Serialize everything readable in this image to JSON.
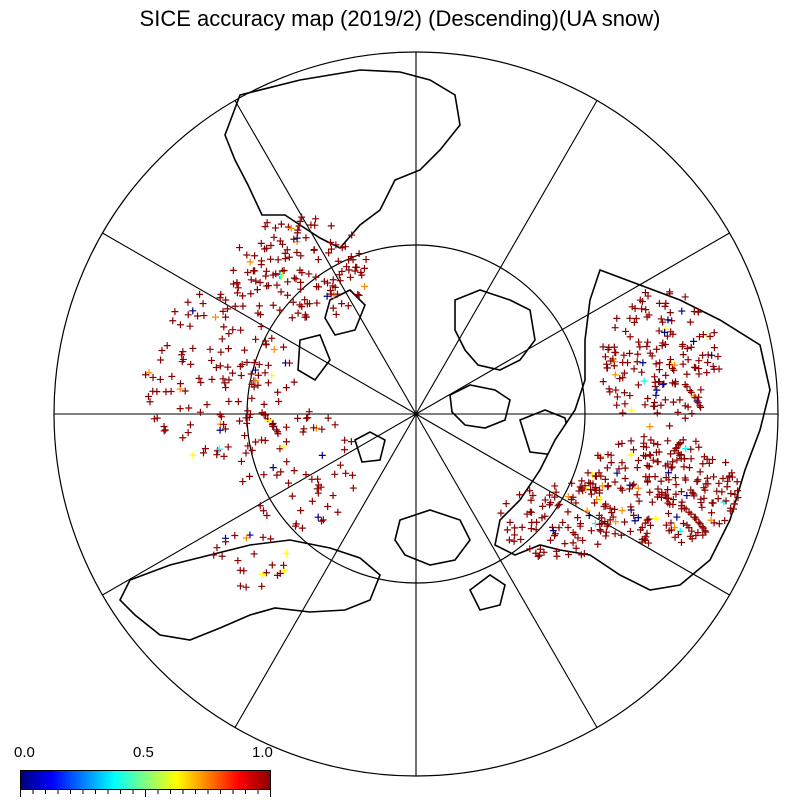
{
  "map": {
    "title": "SICE accuracy map (2019/2) (Descending)(UA snow)",
    "projection": "north-polar-stereographic",
    "inner_circle_latitude_note": "",
    "colors": {
      "high_accuracy": "#8b0000",
      "mid_high": "#ff8c00",
      "mid": "#ffff00",
      "mid_low": "#00ffff",
      "low_accuracy": "#000080",
      "coastline": "#000000",
      "background": "#ffffff"
    }
  },
  "colorbar": {
    "min_label": "0.0",
    "mid_label": "0.5",
    "max_label": "1.0",
    "stops": [
      "#000080",
      "#0000ff",
      "#0080ff",
      "#00ffff",
      "#80ff80",
      "#ffff00",
      "#ff8000",
      "#ff0000",
      "#8b0000"
    ]
  }
}
